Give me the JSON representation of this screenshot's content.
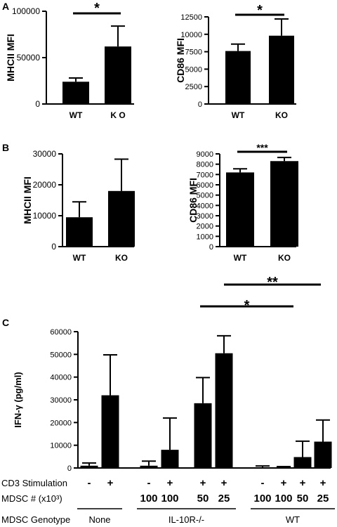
{
  "chart_data": [
    {
      "panel": "A",
      "type": "bar",
      "ylabel": "MHCII MFI",
      "categories": [
        "WT",
        "KO"
      ],
      "category_labels": [
        "WT",
        "K O"
      ],
      "values": [
        24000,
        62000
      ],
      "errors": [
        4000,
        22000
      ],
      "ylim": [
        0,
        100000
      ],
      "yticks": [
        0,
        50000,
        100000
      ],
      "significance": [
        {
          "from": 0,
          "to": 1,
          "label": "*"
        }
      ]
    },
    {
      "panel": "",
      "type": "bar",
      "ylabel": "CD86 MFI",
      "categories": [
        "WT",
        "KO"
      ],
      "values": [
        7600,
        9800
      ],
      "errors": [
        1000,
        2400
      ],
      "ylim": [
        0,
        12500
      ],
      "yticks": [
        0,
        2500,
        5000,
        7500,
        10000,
        12500
      ],
      "significance": [
        {
          "from": 0,
          "to": 1,
          "label": "*"
        }
      ]
    },
    {
      "panel": "B",
      "type": "bar",
      "ylabel": "MHCII MFI",
      "categories": [
        "WT",
        "KO"
      ],
      "values": [
        9500,
        18000
      ],
      "errors": [
        5000,
        10300
      ],
      "ylim": [
        0,
        30000
      ],
      "yticks": [
        0,
        10000,
        20000,
        30000
      ],
      "significance": []
    },
    {
      "panel": "",
      "type": "bar",
      "ylabel": "CD86 MFI",
      "categories": [
        "WT",
        "KO"
      ],
      "values": [
        7200,
        8300
      ],
      "errors": [
        350,
        350
      ],
      "ylim": [
        0,
        9000
      ],
      "yticks": [
        0,
        1000,
        2000,
        3000,
        4000,
        5000,
        6000,
        7000,
        8000,
        9000
      ],
      "significance": [
        {
          "from": 0,
          "to": 1,
          "label": "***"
        }
      ]
    },
    {
      "panel": "C",
      "type": "bar",
      "ylabel": "IFN-γ (pg/ml)",
      "values": [
        1000,
        32000,
        1000,
        8000,
        28500,
        50500,
        300,
        300,
        4800,
        11600
      ],
      "errors": [
        1200,
        17800,
        2000,
        14000,
        11300,
        7700,
        600,
        300,
        7000,
        9500
      ],
      "ylim": [
        0,
        60000
      ],
      "yticks": [
        0,
        10000,
        20000,
        30000,
        40000,
        50000,
        60000
      ],
      "significance": [
        {
          "from": 4,
          "to": 8,
          "label": "*"
        },
        {
          "from": 5,
          "to": 9,
          "label": "**"
        }
      ],
      "table_rows": [
        {
          "label": "CD3 Stimulation",
          "cells": [
            "-",
            "+",
            "-",
            "+",
            "+",
            "+",
            "-",
            "+",
            "+",
            "+"
          ]
        },
        {
          "label": "MDSC # (x10³)",
          "cells": [
            "",
            "",
            "100",
            "100",
            "50",
            "25",
            "100",
            "100",
            "50",
            "25"
          ]
        }
      ],
      "genotype_row": {
        "label": "MDSC Genotype",
        "groups": [
          {
            "label": "None",
            "from": 0,
            "to": 1
          },
          {
            "label": "IL-10R-/-",
            "from": 2,
            "to": 5
          },
          {
            "label": "WT",
            "from": 6,
            "to": 9
          }
        ]
      }
    }
  ]
}
